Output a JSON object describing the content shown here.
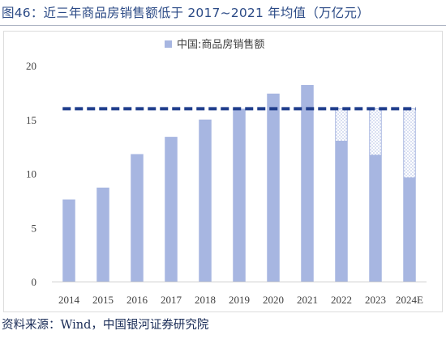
{
  "title": "图46：近三年商品房销售额低于 2017~2021 年均值（万亿元）",
  "source": "资料来源：Wind，中国银河证券研究院",
  "colors": {
    "bar": "#a7b6e1",
    "reference_line": "#1f3d8c",
    "title": "#2b4a86",
    "source": "#1a2c57",
    "axis_text": "#404040"
  },
  "chart_data": {
    "type": "bar",
    "categories": [
      "2014",
      "2015",
      "2016",
      "2017",
      "2018",
      "2019",
      "2020",
      "2021",
      "2022",
      "2023",
      "2024E"
    ],
    "series": [
      {
        "name": "中国:商品房销售额",
        "values": [
          7.6,
          8.7,
          11.8,
          13.4,
          15.0,
          16.0,
          17.4,
          18.2,
          13.0,
          11.7,
          9.6
        ]
      }
    ],
    "average_2017_2021": 16.0,
    "gap_to_average": [
      null,
      null,
      null,
      null,
      null,
      null,
      null,
      null,
      3.0,
      4.3,
      6.4
    ],
    "ylim": [
      0,
      20
    ],
    "yticks": [
      0,
      5,
      10,
      15,
      20
    ],
    "legend_position": "top",
    "grid": false
  }
}
